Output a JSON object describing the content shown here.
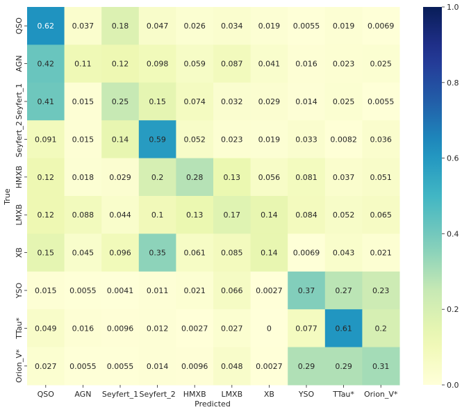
{
  "chart_data": {
    "type": "heatmap",
    "title": "",
    "xlabel": "Predicted",
    "ylabel": "True",
    "x_categories": [
      "QSO",
      "AGN",
      "Seyfert_1",
      "Seyfert_2",
      "HMXB",
      "LMXB",
      "XB",
      "YSO",
      "TTau*",
      "Orion_V*"
    ],
    "y_categories": [
      "QSO",
      "AGN",
      "Seyfert_1",
      "Seyfert_2",
      "HMXB",
      "LMXB",
      "XB",
      "YSO",
      "TTau*",
      "Orion_V*"
    ],
    "values": [
      [
        0.62,
        0.037,
        0.18,
        0.047,
        0.026,
        0.034,
        0.019,
        0.0055,
        0.019,
        0.0069
      ],
      [
        0.42,
        0.11,
        0.12,
        0.098,
        0.059,
        0.087,
        0.041,
        0.016,
        0.023,
        0.025
      ],
      [
        0.41,
        0.015,
        0.25,
        0.15,
        0.074,
        0.032,
        0.029,
        0.014,
        0.025,
        0.0055
      ],
      [
        0.091,
        0.015,
        0.14,
        0.59,
        0.052,
        0.023,
        0.019,
        0.033,
        0.0082,
        0.036
      ],
      [
        0.12,
        0.018,
        0.029,
        0.2,
        0.28,
        0.13,
        0.056,
        0.081,
        0.037,
        0.051
      ],
      [
        0.12,
        0.088,
        0.044,
        0.1,
        0.13,
        0.17,
        0.14,
        0.084,
        0.052,
        0.065
      ],
      [
        0.15,
        0.045,
        0.096,
        0.35,
        0.061,
        0.085,
        0.14,
        0.0069,
        0.043,
        0.021
      ],
      [
        0.015,
        0.0055,
        0.0041,
        0.011,
        0.021,
        0.066,
        0.0027,
        0.37,
        0.27,
        0.23
      ],
      [
        0.049,
        0.016,
        0.0096,
        0.012,
        0.0027,
        0.027,
        0,
        0.077,
        0.61,
        0.2
      ],
      [
        0.027,
        0.0055,
        0.0055,
        0.014,
        0.0096,
        0.048,
        0.0027,
        0.29,
        0.29,
        0.31
      ]
    ],
    "colormap": "YlGnBu",
    "vmin": 0,
    "vmax": 1,
    "colorbar_ticks": [
      "0.0",
      "0.2",
      "0.4",
      "0.6",
      "0.8",
      "1.0"
    ],
    "colorbar_tick_values": [
      0,
      0.2,
      0.4,
      0.6,
      0.8,
      1.0
    ],
    "grid": false,
    "colorbar_position": "right"
  }
}
